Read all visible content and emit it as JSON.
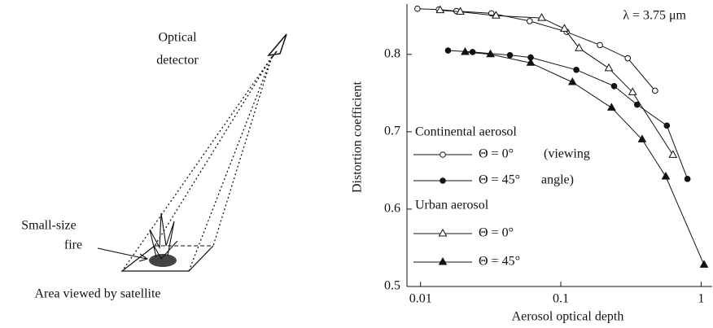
{
  "diagram": {
    "detector_label": [
      "Optical",
      "detector"
    ],
    "fire_label": [
      "Small-size",
      "fire"
    ],
    "area_label": "Area viewed by satellite"
  },
  "chart_data": {
    "type": "line",
    "annotation": "λ = 3.75 μm",
    "x_label": "Aerosol optical depth",
    "y_label": "Distortion coefficient",
    "log_x": true,
    "xlim": [
      0.008,
      1.2
    ],
    "xticks": [
      0.01,
      0.1,
      1
    ],
    "ylim": [
      0.5,
      0.865
    ],
    "yticks": [
      0.5,
      0.6,
      0.7,
      0.8
    ],
    "legend_groups": [
      "Continental aerosol",
      "Urban aerosol"
    ],
    "legend_note": [
      "(viewing",
      "angle)"
    ],
    "series": [
      {
        "name": "Θ = 0°",
        "color": "#111",
        "marker": "circle",
        "filled": false,
        "x": [
          0.0095,
          0.0135,
          0.018,
          0.032,
          0.06,
          0.11,
          0.19,
          0.3,
          0.47
        ],
        "values": [
          0.859,
          0.858,
          0.856,
          0.853,
          0.843,
          0.829,
          0.812,
          0.795,
          0.753
        ]
      },
      {
        "name": "Θ = 45°",
        "color": "#111",
        "marker": "circle",
        "filled": true,
        "x": [
          0.0157,
          0.0235,
          0.0434,
          0.061,
          0.129,
          0.24,
          0.35,
          0.57,
          0.8
        ],
        "values": [
          0.805,
          0.803,
          0.799,
          0.796,
          0.78,
          0.759,
          0.735,
          0.708,
          0.639
        ]
      },
      {
        "name": "Θ = 0°",
        "color": "#111",
        "marker": "triangle",
        "filled": false,
        "x": [
          0.0138,
          0.0192,
          0.0345,
          0.073,
          0.106,
          0.135,
          0.22,
          0.325,
          0.63
        ],
        "values": [
          0.857,
          0.855,
          0.85,
          0.847,
          0.833,
          0.808,
          0.782,
          0.751,
          0.67
        ]
      },
      {
        "name": "Θ = 45°",
        "color": "#111",
        "marker": "triangle",
        "filled": true,
        "x": [
          0.0208,
          0.0315,
          0.061,
          0.121,
          0.23,
          0.38,
          0.56,
          1.05
        ],
        "values": [
          0.803,
          0.8,
          0.789,
          0.764,
          0.731,
          0.69,
          0.642,
          0.528
        ]
      }
    ]
  }
}
